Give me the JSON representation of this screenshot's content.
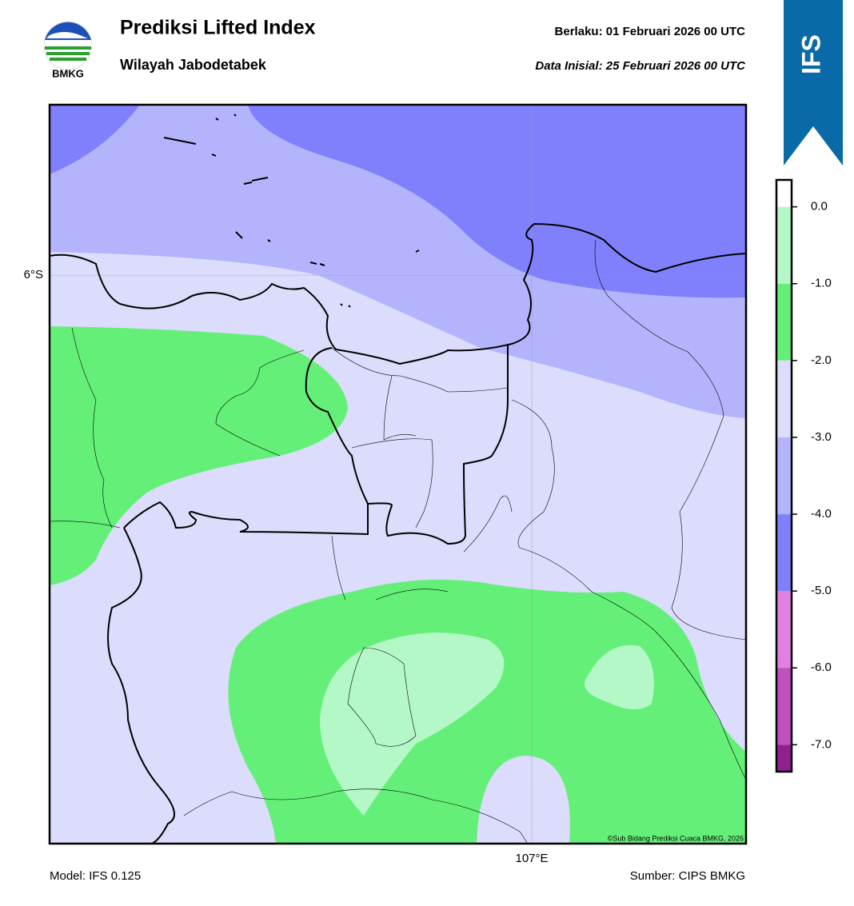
{
  "header": {
    "logo_text": "BMKG",
    "title": "Prediksi Lifted Index",
    "subtitle": "Wilayah Jabodetabek",
    "valid": "Berlaku:  01 Februari 2026 00 UTC",
    "init": "Data Inisial:  25 Februari 2026 00 UTC",
    "badge": "IFS"
  },
  "map": {
    "lat_range": [
      -5.7,
      -7.0
    ],
    "lon_range": [
      106.1,
      107.4
    ],
    "lat_lines": [
      {
        "value": -6,
        "label": "6°S"
      }
    ],
    "lon_lines": [
      {
        "value": 107,
        "label": "107°E"
      }
    ],
    "credit": "©Sub Bidang Prediksi Cuaca BMKG, 2026"
  },
  "colorbar": {
    "range": [
      0.35,
      -7.35
    ],
    "levels": [
      0.35,
      0,
      -1,
      -2,
      -3,
      -4,
      -5,
      -6,
      -7,
      -7.35
    ],
    "colors": [
      "#ffffff",
      "#b4f8c8",
      "#64f078",
      "#dcdcfc",
      "#b4b4fc",
      "#8080fc",
      "#e080e0",
      "#c050c0",
      "#902090"
    ],
    "ticks": [
      {
        "value": 0,
        "label": "0.0"
      },
      {
        "value": -1,
        "label": "-1.0"
      },
      {
        "value": -2,
        "label": "-2.0"
      },
      {
        "value": -3,
        "label": "-3.0"
      },
      {
        "value": -4,
        "label": "-4.0"
      },
      {
        "value": -5,
        "label": "-5.0"
      },
      {
        "value": -6,
        "label": "-6.0"
      },
      {
        "value": -7,
        "label": "-7.0"
      }
    ]
  },
  "footer": {
    "model": "Model: IFS 0.125",
    "source": "Sumber: CIPS BMKG"
  }
}
